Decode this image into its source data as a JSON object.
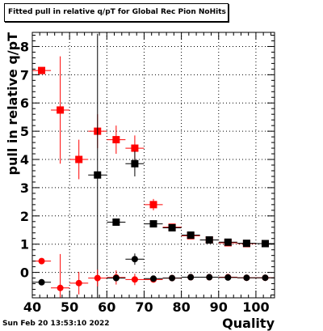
{
  "timestamp": "Sun Feb 20 13:53:10 2022",
  "chart_data": {
    "type": "scatter",
    "title": "Fitted pull in relative q/pT for Global Rec Pion NoHits",
    "xlabel": "Quality",
    "ylabel": "pull in relative q/pT",
    "xlim": [
      40,
      105
    ],
    "ylim": [
      -0.9,
      8.5
    ],
    "x_ticks": [
      40,
      50,
      60,
      70,
      80,
      90,
      100
    ],
    "y_ticks": [
      0,
      1,
      2,
      3,
      4,
      5,
      6,
      7,
      8
    ],
    "grid": true,
    "series": [
      {
        "marker": "square",
        "color": "#ff0000",
        "points": [
          {
            "x": 42.5,
            "y": 7.15,
            "xerr": 2.5,
            "yerr": 0
          },
          {
            "x": 47.5,
            "y": 5.75,
            "xerr": 2.5,
            "yerr": 1.9
          },
          {
            "x": 52.5,
            "y": 4.0,
            "xerr": 2.5,
            "yerr": 0.7
          },
          {
            "x": 57.5,
            "y": 5.0,
            "xerr": 2.5,
            "yerr": 0.6
          },
          {
            "x": 62.5,
            "y": 4.7,
            "xerr": 2.5,
            "yerr": 0.5
          },
          {
            "x": 67.5,
            "y": 4.4,
            "xerr": 2.5,
            "yerr": 0.45
          },
          {
            "x": 72.5,
            "y": 2.4,
            "xerr": 2.5,
            "yerr": 0.2
          },
          {
            "x": 77.5,
            "y": 1.6,
            "xerr": 2.5,
            "yerr": 0.1
          },
          {
            "x": 82.5,
            "y": 1.3,
            "xerr": 2.5,
            "yerr": 0.08
          },
          {
            "x": 87.5,
            "y": 1.15,
            "xerr": 2.5,
            "yerr": 0.06
          },
          {
            "x": 92.5,
            "y": 1.05,
            "xerr": 2.5,
            "yerr": 0.05
          },
          {
            "x": 97.5,
            "y": 1.02,
            "xerr": 2.5,
            "yerr": 0.04
          },
          {
            "x": 102.5,
            "y": 1.02,
            "xerr": 2.5,
            "yerr": 0.04
          }
        ]
      },
      {
        "marker": "square",
        "color": "#000000",
        "points": [
          {
            "x": 57.5,
            "y": 3.45,
            "xerr": 2.5,
            "yerr": 5.0
          },
          {
            "x": 62.5,
            "y": 1.78,
            "xerr": 2.5,
            "yerr": 0.05
          },
          {
            "x": 67.5,
            "y": 3.85,
            "xerr": 2.5,
            "yerr": 0.45
          },
          {
            "x": 72.5,
            "y": 1.72,
            "xerr": 2.5,
            "yerr": 0.05
          },
          {
            "x": 77.5,
            "y": 1.58,
            "xerr": 2.5,
            "yerr": 0.05
          },
          {
            "x": 82.5,
            "y": 1.32,
            "xerr": 2.5,
            "yerr": 0.04
          },
          {
            "x": 87.5,
            "y": 1.15,
            "xerr": 2.5,
            "yerr": 0.03
          },
          {
            "x": 92.5,
            "y": 1.07,
            "xerr": 2.5,
            "yerr": 0.03
          },
          {
            "x": 97.5,
            "y": 1.03,
            "xerr": 2.5,
            "yerr": 0.03
          },
          {
            "x": 102.5,
            "y": 1.02,
            "xerr": 2.5,
            "yerr": 0.03
          }
        ]
      },
      {
        "marker": "circle",
        "color": "#ff0000",
        "points": [
          {
            "x": 42.5,
            "y": 0.4,
            "xerr": 2.5,
            "yerr": 0
          },
          {
            "x": 47.5,
            "y": -0.55,
            "xerr": 2.5,
            "yerr": 1.2
          },
          {
            "x": 52.5,
            "y": -0.38,
            "xerr": 2.5,
            "yerr": 0.4
          },
          {
            "x": 57.5,
            "y": -0.2,
            "xerr": 2.5,
            "yerr": 0.3
          },
          {
            "x": 62.5,
            "y": -0.18,
            "xerr": 2.5,
            "yerr": 0.25
          },
          {
            "x": 67.5,
            "y": -0.25,
            "xerr": 2.5,
            "yerr": 0.2
          },
          {
            "x": 72.5,
            "y": -0.25,
            "xerr": 2.5,
            "yerr": 0.1
          },
          {
            "x": 77.5,
            "y": -0.2,
            "xerr": 2.5,
            "yerr": 0.05
          },
          {
            "x": 82.5,
            "y": -0.17,
            "xerr": 2.5,
            "yerr": 0.04
          },
          {
            "x": 87.5,
            "y": -0.17,
            "xerr": 2.5,
            "yerr": 0.04
          },
          {
            "x": 92.5,
            "y": -0.17,
            "xerr": 2.5,
            "yerr": 0.03
          },
          {
            "x": 97.5,
            "y": -0.19,
            "xerr": 2.5,
            "yerr": 0.03
          },
          {
            "x": 102.5,
            "y": -0.19,
            "xerr": 2.5,
            "yerr": 0.03
          }
        ]
      },
      {
        "marker": "circle",
        "color": "#000000",
        "points": [
          {
            "x": 42.5,
            "y": -0.35,
            "xerr": 2.5,
            "yerr": 0
          },
          {
            "x": 62.5,
            "y": -0.2,
            "xerr": 2.5,
            "yerr": 0.1
          },
          {
            "x": 67.5,
            "y": 0.47,
            "xerr": 2.5,
            "yerr": 0.2
          },
          {
            "x": 72.5,
            "y": -0.22,
            "xerr": 2.5,
            "yerr": 0.05
          },
          {
            "x": 77.5,
            "y": -0.2,
            "xerr": 2.5,
            "yerr": 0.04
          },
          {
            "x": 82.5,
            "y": -0.17,
            "xerr": 2.5,
            "yerr": 0.03
          },
          {
            "x": 87.5,
            "y": -0.17,
            "xerr": 2.5,
            "yerr": 0.03
          },
          {
            "x": 92.5,
            "y": -0.18,
            "xerr": 2.5,
            "yerr": 0.03
          },
          {
            "x": 97.5,
            "y": -0.19,
            "xerr": 2.5,
            "yerr": 0.03
          },
          {
            "x": 102.5,
            "y": -0.19,
            "xerr": 2.5,
            "yerr": 0.03
          }
        ]
      }
    ]
  }
}
